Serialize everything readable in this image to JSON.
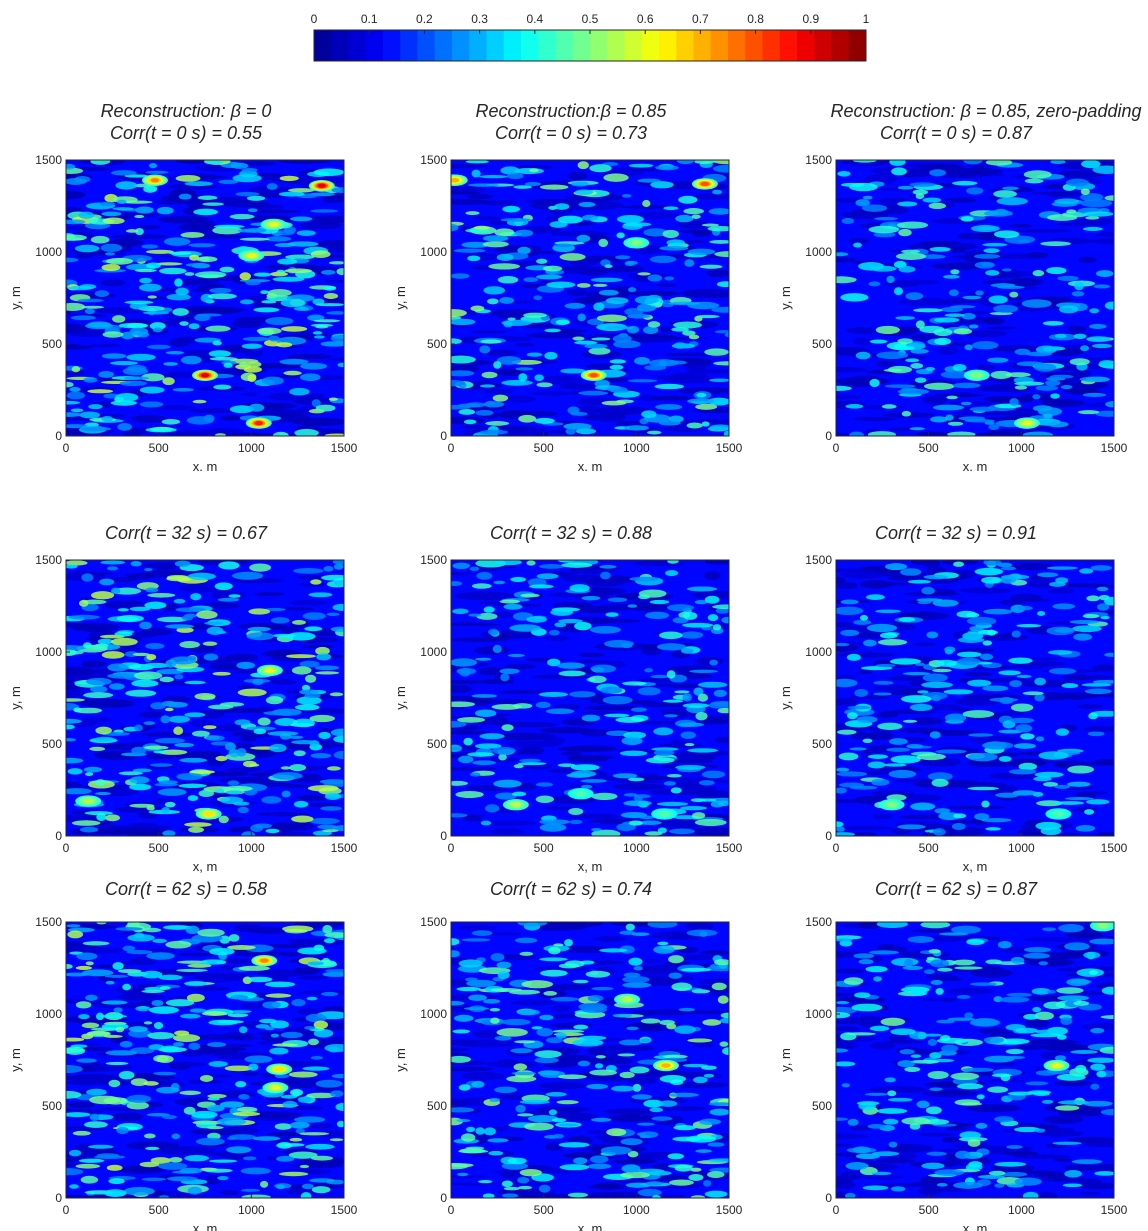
{
  "colormap": [
    "#00008f",
    "#0000ff",
    "#0080ff",
    "#00ffff",
    "#80ff80",
    "#ffff00",
    "#ff8000",
    "#ff0000",
    "#800000"
  ],
  "colorbar": {
    "ticks": [
      "0",
      "0.1",
      "0.2",
      "0.3",
      "0.4",
      "0.5",
      "0.6",
      "0.7",
      "0.8",
      "0.9",
      "1"
    ],
    "range": [
      0,
      1
    ],
    "levels": 32
  },
  "chart_data": [
    {
      "type": "heatmap",
      "title": [
        "Reconstruction: β = 0",
        "Corr(t = 0 s) = 0.55"
      ],
      "xlabel": "x. m",
      "ylabel": "y, m",
      "xlim": [
        0,
        1500
      ],
      "ylim": [
        0,
        1500
      ],
      "xticks": [
        "0",
        "500",
        "1000",
        "1500"
      ],
      "yticks": [
        "0",
        "500",
        "1000",
        "1500"
      ],
      "intensity": 0.62,
      "hotspots": [
        [
          750,
          330,
          0.9
        ],
        [
          1040,
          70,
          0.85
        ],
        [
          1380,
          1360,
          0.9
        ],
        [
          480,
          1390,
          0.75
        ],
        [
          1120,
          1150,
          0.6
        ],
        [
          1000,
          980,
          0.6
        ]
      ]
    },
    {
      "type": "heatmap",
      "title": [
        "Reconstruction:β = 0.85",
        "Corr(t = 0 s) = 0.73"
      ],
      "xlabel": "x. m",
      "ylabel": "y, m",
      "xlim": [
        0,
        1500
      ],
      "ylim": [
        0,
        1500
      ],
      "xticks": [
        "0",
        "500",
        "1000",
        "1500"
      ],
      "yticks": [
        "0",
        "500",
        "1000",
        "1500"
      ],
      "intensity": 0.5,
      "hotspots": [
        [
          770,
          330,
          0.8
        ],
        [
          1370,
          1370,
          0.8
        ],
        [
          20,
          1390,
          0.7
        ],
        [
          1000,
          1050,
          0.5
        ]
      ]
    },
    {
      "type": "heatmap",
      "title": [
        "Reconstruction: β = 0.85, zero-padding",
        "Corr(t = 0 s) = 0.87"
      ],
      "xlabel": "x. m",
      "ylabel": "y, m",
      "xlim": [
        0,
        1500
      ],
      "ylim": [
        0,
        1500
      ],
      "xticks": [
        "0",
        "500",
        "1000",
        "1500"
      ],
      "yticks": [
        "0",
        "500",
        "1000",
        "1500"
      ],
      "intensity": 0.42,
      "hotspots": [
        [
          1030,
          70,
          0.6
        ],
        [
          760,
          330,
          0.5
        ]
      ]
    },
    {
      "type": "heatmap",
      "title": [
        "Corr(t = 32 s) = 0.67"
      ],
      "xlabel": "x, m",
      "ylabel": "y, m",
      "xlim": [
        0,
        1500
      ],
      "ylim": [
        0,
        1500
      ],
      "xticks": [
        "0",
        "500",
        "1000",
        "1500"
      ],
      "yticks": [
        "0",
        "500",
        "1000",
        "1500"
      ],
      "intensity": 0.58,
      "hotspots": [
        [
          770,
          120,
          0.65
        ],
        [
          1100,
          900,
          0.6
        ],
        [
          120,
          190,
          0.55
        ]
      ]
    },
    {
      "type": "heatmap",
      "title": [
        "Corr(t = 32 s) = 0.88"
      ],
      "xlabel": "x, m",
      "ylabel": "y, m",
      "xlim": [
        0,
        1500
      ],
      "ylim": [
        0,
        1500
      ],
      "xticks": [
        "0",
        "500",
        "1000",
        "1500"
      ],
      "yticks": [
        "0",
        "500",
        "1000",
        "1500"
      ],
      "intensity": 0.4,
      "hotspots": [
        [
          350,
          170,
          0.55
        ],
        [
          700,
          230,
          0.45
        ],
        [
          1150,
          120,
          0.45
        ]
      ]
    },
    {
      "type": "heatmap",
      "title": [
        "Corr(t = 32 s) = 0.91"
      ],
      "xlabel": "x, m",
      "ylabel": "y, m",
      "xlim": [
        0,
        1500
      ],
      "ylim": [
        0,
        1500
      ],
      "xticks": [
        "0",
        "500",
        "1000",
        "1500"
      ],
      "yticks": [
        "0",
        "500",
        "1000",
        "1500"
      ],
      "intensity": 0.38,
      "hotspots": [
        [
          300,
          170,
          0.5
        ],
        [
          1200,
          120,
          0.45
        ]
      ]
    },
    {
      "type": "heatmap",
      "title": [
        "Corr(t = 62 s) = 0.58"
      ],
      "xlabel": "x, m",
      "ylabel": "y, m",
      "xlim": [
        0,
        1500
      ],
      "ylim": [
        0,
        1500
      ],
      "xticks": [
        "0",
        "500",
        "1000",
        "1500"
      ],
      "yticks": [
        "0",
        "500",
        "1000",
        "1500"
      ],
      "intensity": 0.6,
      "hotspots": [
        [
          1070,
          1290,
          0.75
        ],
        [
          1150,
          700,
          0.65
        ],
        [
          1130,
          600,
          0.6
        ]
      ]
    },
    {
      "type": "heatmap",
      "title": [
        "Corr(t = 62 s) = 0.74"
      ],
      "xlabel": "x, m",
      "ylabel": "y, m",
      "xlim": [
        0,
        1500
      ],
      "ylim": [
        0,
        1500
      ],
      "xticks": [
        "0",
        "500",
        "1000",
        "1500"
      ],
      "yticks": [
        "0",
        "500",
        "1000",
        "1500"
      ],
      "intensity": 0.5,
      "hotspots": [
        [
          1160,
          720,
          0.7
        ],
        [
          950,
          1080,
          0.55
        ]
      ]
    },
    {
      "type": "heatmap",
      "title": [
        "Corr(t = 62 s) = 0.87"
      ],
      "xlabel": "x, m",
      "ylabel": "y, m",
      "xlim": [
        0,
        1500
      ],
      "ylim": [
        0,
        1500
      ],
      "xticks": [
        "0",
        "500",
        "1000",
        "1500"
      ],
      "yticks": [
        "0",
        "500",
        "1000",
        "1500"
      ],
      "intensity": 0.42,
      "hotspots": [
        [
          1190,
          720,
          0.6
        ],
        [
          1440,
          1480,
          0.5
        ]
      ]
    }
  ]
}
